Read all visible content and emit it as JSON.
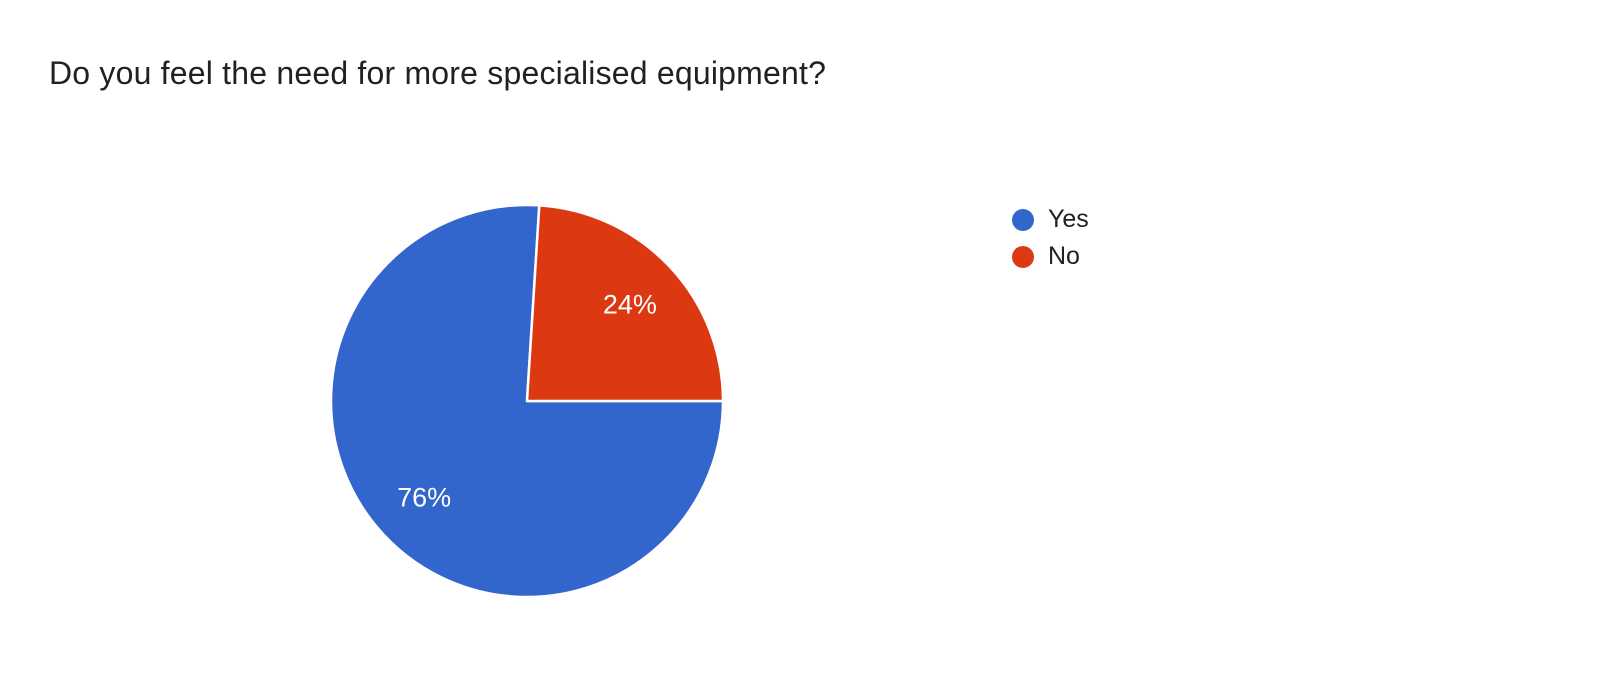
{
  "page": {
    "background_color": "#ffffff"
  },
  "chart_data": {
    "type": "pie",
    "title": "Do you feel the need for more specialised equipment?",
    "categories": [
      "Yes",
      "No"
    ],
    "values": [
      76,
      24
    ],
    "value_unit": "percent",
    "slice_labels": [
      "76%",
      "24%"
    ],
    "colors": [
      "#3366CC",
      "#DC3912"
    ],
    "slice_label_color": "#ffffff",
    "slice_border_color": "#ffffff",
    "start_angle_deg": 90,
    "direction": "clockwise",
    "legend_position": "right",
    "background": "#ffffff"
  }
}
